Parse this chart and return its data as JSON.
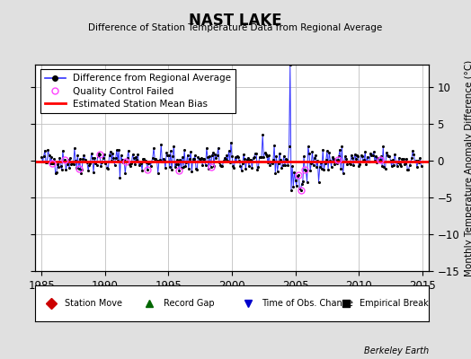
{
  "title": "NAST LAKE",
  "subtitle": "Difference of Station Temperature Data from Regional Average",
  "ylabel": "Monthly Temperature Anomaly Difference (°C)",
  "xlim": [
    1984.5,
    2015.5
  ],
  "ylim": [
    -15,
    13
  ],
  "yticks": [
    -15,
    -10,
    -5,
    0,
    5,
    10
  ],
  "xticks": [
    1985,
    1990,
    1995,
    2000,
    2005,
    2010,
    2015
  ],
  "background_color": "#e0e0e0",
  "plot_bg_color": "#ffffff",
  "grid_color": "#c0c0c0",
  "line_color": "#3333ff",
  "bias_line_color": "#ff0000",
  "bias_value": -0.1,
  "marker_color": "#000000",
  "qc_color": "#ff44ff",
  "footer": "Berkeley Earth",
  "seed": 42,
  "spike_year": 2004.58,
  "spike_value": 13.0,
  "neg_cluster_start": 2004.6,
  "neg_cluster_end": 2006.0,
  "noise_std": 0.9
}
